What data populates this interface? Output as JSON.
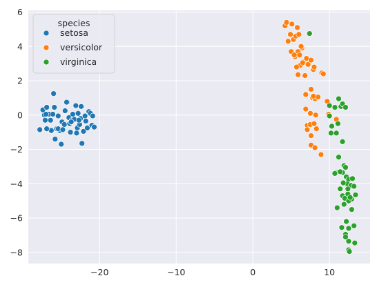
{
  "chart_data": {
    "type": "scatter",
    "title": "",
    "xlabel": "",
    "ylabel": "",
    "xlim": [
      -29.3,
      15.3
    ],
    "ylim": [
      -8.65,
      6.1
    ],
    "grid": true,
    "legend": {
      "title": "species",
      "placement": "top-left"
    },
    "x_ticks": [
      -20,
      -10,
      0,
      10
    ],
    "y_ticks": [
      -8,
      -6,
      -4,
      -2,
      0,
      2,
      4,
      6
    ],
    "series": [
      {
        "name": "setosa",
        "color": "#1f77b4",
        "points": [
          [
            -27.8,
            -0.85
          ],
          [
            -27.4,
            0.3
          ],
          [
            -27.1,
            -0.3
          ],
          [
            -26.9,
            0.45
          ],
          [
            -27.2,
            0.0
          ],
          [
            -26.6,
            0.05
          ],
          [
            -26.4,
            -0.3
          ],
          [
            -26.1,
            0.05
          ],
          [
            -26.0,
            1.25
          ],
          [
            -25.9,
            0.45
          ],
          [
            -25.8,
            -1.4
          ],
          [
            -25.6,
            -0.8
          ],
          [
            -25.4,
            -0.05
          ],
          [
            -25.2,
            -0.9
          ],
          [
            -25.0,
            -1.7
          ],
          [
            -24.9,
            -0.4
          ],
          [
            -24.6,
            -0.55
          ],
          [
            -24.5,
            0.25
          ],
          [
            -24.2,
            0.75
          ],
          [
            -24.0,
            -0.15
          ],
          [
            -23.9,
            -0.5
          ],
          [
            -23.8,
            -1.0
          ],
          [
            -23.6,
            -0.3
          ],
          [
            -23.5,
            0.05
          ],
          [
            -23.3,
            -0.25
          ],
          [
            -23.1,
            0.55
          ],
          [
            -22.9,
            -0.75
          ],
          [
            -22.8,
            0.1
          ],
          [
            -22.6,
            -0.55
          ],
          [
            -22.5,
            -0.2
          ],
          [
            -22.4,
            0.5
          ],
          [
            -22.3,
            -1.65
          ],
          [
            -22.1,
            -0.95
          ],
          [
            -21.9,
            -0.05
          ],
          [
            -21.8,
            -0.35
          ],
          [
            -21.6,
            -0.75
          ],
          [
            -21.4,
            0.2
          ],
          [
            -21.2,
            0.1
          ],
          [
            -21.0,
            -0.6
          ],
          [
            -20.9,
            -0.05
          ],
          [
            -20.7,
            -0.7
          ],
          [
            -26.3,
            -0.9
          ],
          [
            -26.9,
            -0.8
          ],
          [
            -24.3,
            0.75
          ],
          [
            -25.4,
            -0.8
          ],
          [
            -23.0,
            -1.05
          ],
          [
            -27.0,
            0.05
          ],
          [
            -22.7,
            -0.3
          ],
          [
            -24.8,
            -0.85
          ],
          [
            -23.7,
            -0.4
          ]
        ]
      },
      {
        "name": "versicolor",
        "color": "#ff7f0e",
        "points": [
          [
            4.2,
            5.2
          ],
          [
            4.4,
            5.4
          ],
          [
            4.6,
            4.3
          ],
          [
            4.9,
            4.7
          ],
          [
            5.0,
            3.7
          ],
          [
            5.1,
            5.3
          ],
          [
            5.3,
            4.4
          ],
          [
            5.5,
            3.4
          ],
          [
            5.6,
            4.6
          ],
          [
            5.8,
            5.1
          ],
          [
            5.9,
            3.7
          ],
          [
            6.0,
            4.7
          ],
          [
            6.1,
            3.5
          ],
          [
            6.2,
            2.9
          ],
          [
            6.4,
            3.9
          ],
          [
            6.6,
            3.1
          ],
          [
            6.8,
            2.3
          ],
          [
            7.0,
            3.3
          ],
          [
            7.2,
            2.95
          ],
          [
            7.6,
            3.2
          ],
          [
            5.4,
            3.5
          ],
          [
            5.9,
            2.35
          ],
          [
            6.5,
            3.05
          ],
          [
            7.9,
            2.65
          ],
          [
            8.0,
            2.8
          ],
          [
            9.0,
            2.45
          ],
          [
            9.2,
            2.4
          ],
          [
            6.9,
            1.2
          ],
          [
            7.6,
            1.5
          ],
          [
            7.8,
            1.0
          ],
          [
            8.1,
            0.95
          ],
          [
            8.5,
            1.05
          ],
          [
            9.7,
            0.8
          ],
          [
            6.9,
            0.35
          ],
          [
            7.5,
            0.1
          ],
          [
            8.2,
            0.0
          ],
          [
            7.1,
            -0.6
          ],
          [
            7.5,
            -0.55
          ],
          [
            8.0,
            -0.5
          ],
          [
            7.1,
            -0.85
          ],
          [
            7.6,
            -1.2
          ],
          [
            8.3,
            -0.8
          ],
          [
            7.6,
            -1.75
          ],
          [
            8.1,
            -1.9
          ],
          [
            8.9,
            -2.3
          ],
          [
            10.9,
            -0.25
          ],
          [
            9.9,
            0.05
          ],
          [
            5.7,
            2.8
          ],
          [
            6.3,
            4.0
          ],
          [
            7.9,
            1.1
          ]
        ]
      },
      {
        "name": "virginica",
        "color": "#2ca02c",
        "points": [
          [
            7.4,
            4.75
          ],
          [
            10.0,
            0.55
          ],
          [
            10.7,
            0.45
          ],
          [
            11.2,
            0.95
          ],
          [
            11.5,
            0.5
          ],
          [
            11.7,
            0.65
          ],
          [
            12.1,
            0.45
          ],
          [
            10.0,
            -0.05
          ],
          [
            10.3,
            -0.65
          ],
          [
            11.1,
            -0.5
          ],
          [
            10.2,
            -1.05
          ],
          [
            10.9,
            -1.05
          ],
          [
            11.7,
            -1.55
          ],
          [
            11.2,
            -2.45
          ],
          [
            10.9,
            -3.35
          ],
          [
            11.3,
            -3.3
          ],
          [
            11.7,
            -3.35
          ],
          [
            11.9,
            -2.95
          ],
          [
            12.1,
            -3.05
          ],
          [
            12.2,
            -3.6
          ],
          [
            12.5,
            -3.75
          ],
          [
            13.0,
            -3.7
          ],
          [
            12.3,
            -4.0
          ],
          [
            12.8,
            -4.1
          ],
          [
            13.2,
            -4.15
          ],
          [
            11.4,
            -4.3
          ],
          [
            11.7,
            -4.7
          ],
          [
            12.0,
            -4.85
          ],
          [
            12.4,
            -4.6
          ],
          [
            12.9,
            -4.9
          ],
          [
            13.4,
            -4.65
          ],
          [
            11.0,
            -5.4
          ],
          [
            11.9,
            -5.2
          ],
          [
            12.5,
            -5.0
          ],
          [
            12.9,
            -5.5
          ],
          [
            12.2,
            -6.2
          ],
          [
            11.6,
            -6.55
          ],
          [
            12.5,
            -6.6
          ],
          [
            13.2,
            -6.45
          ],
          [
            12.1,
            -6.95
          ],
          [
            12.5,
            -7.35
          ],
          [
            13.3,
            -7.45
          ],
          [
            12.5,
            -7.85
          ],
          [
            12.6,
            -7.95
          ],
          [
            12.7,
            -4.8
          ],
          [
            11.8,
            -3.95
          ],
          [
            12.1,
            -7.1
          ],
          [
            11.4,
            -3.3
          ],
          [
            10.7,
            -3.4
          ],
          [
            12.4,
            -4.3
          ]
        ]
      }
    ]
  }
}
